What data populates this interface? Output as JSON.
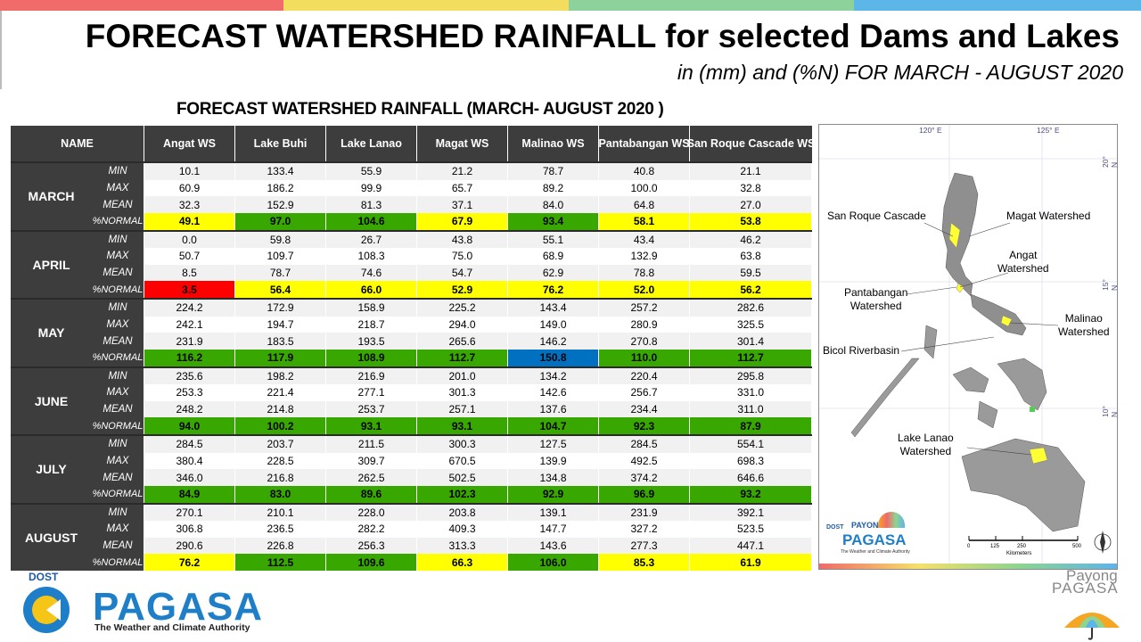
{
  "header": {
    "title": "FORECAST WATERSHED RAINFALL  for selected Dams and Lakes",
    "subtitle": "in (mm) and (%N) FOR MARCH - AUGUST 2020",
    "bar_colors": [
      "#f26b6b",
      "#f3dd5e",
      "#8cd29a",
      "#5db6e8"
    ]
  },
  "table": {
    "title": "FORECAST WATERSHED RAINFALL (MARCH- AUGUST 2020 )",
    "name_header": "NAME",
    "columns": [
      "Angat WS",
      "Lake Buhi",
      "Lake Lanao",
      "Magat WS",
      "Malinao WS",
      "Pantabangan WS",
      "San Roque Cascade WS"
    ],
    "stat_labels": [
      "MIN",
      "MAX",
      "MEAN",
      "%NORMAL"
    ],
    "months": [
      {
        "name": "MARCH",
        "rows": [
          [
            "10.1",
            "133.4",
            "55.9",
            "21.2",
            "78.7",
            "40.8",
            "21.1"
          ],
          [
            "60.9",
            "186.2",
            "99.9",
            "65.7",
            "89.2",
            "100.0",
            "32.8"
          ],
          [
            "32.3",
            "152.9",
            "81.3",
            "37.1",
            "84.0",
            "64.8",
            "27.0"
          ],
          [
            "49.1",
            "97.0",
            "104.6",
            "67.9",
            "93.4",
            "58.1",
            "53.8"
          ]
        ],
        "normal_colors": [
          "yellow",
          "green",
          "green",
          "yellow",
          "green",
          "yellow",
          "yellow"
        ]
      },
      {
        "name": "APRIL",
        "rows": [
          [
            "0.0",
            "59.8",
            "26.7",
            "43.8",
            "55.1",
            "43.4",
            "46.2"
          ],
          [
            "50.7",
            "109.7",
            "108.3",
            "75.0",
            "68.9",
            "132.9",
            "63.8"
          ],
          [
            "8.5",
            "78.7",
            "74.6",
            "54.7",
            "62.9",
            "78.8",
            "59.5"
          ],
          [
            "3.5",
            "56.4",
            "66.0",
            "52.9",
            "76.2",
            "52.0",
            "56.2"
          ]
        ],
        "normal_colors": [
          "red",
          "yellow",
          "yellow",
          "yellow",
          "yellow",
          "yellow",
          "yellow"
        ]
      },
      {
        "name": "MAY",
        "rows": [
          [
            "224.2",
            "172.9",
            "158.9",
            "225.2",
            "143.4",
            "257.2",
            "282.6"
          ],
          [
            "242.1",
            "194.7",
            "218.7",
            "294.0",
            "149.0",
            "280.9",
            "325.5"
          ],
          [
            "231.9",
            "183.5",
            "193.5",
            "265.6",
            "146.2",
            "270.8",
            "301.4"
          ],
          [
            "116.2",
            "117.9",
            "108.9",
            "112.7",
            "150.8",
            "110.0",
            "112.7"
          ]
        ],
        "normal_colors": [
          "green",
          "green",
          "green",
          "green",
          "blue",
          "green",
          "green"
        ]
      },
      {
        "name": "JUNE",
        "rows": [
          [
            "235.6",
            "198.2",
            "216.9",
            "201.0",
            "134.2",
            "220.4",
            "295.8"
          ],
          [
            "253.3",
            "221.4",
            "277.1",
            "301.3",
            "142.6",
            "256.7",
            "331.0"
          ],
          [
            "248.2",
            "214.8",
            "253.7",
            "257.1",
            "137.6",
            "234.4",
            "311.0"
          ],
          [
            "94.0",
            "100.2",
            "93.1",
            "93.1",
            "104.7",
            "92.3",
            "87.9"
          ]
        ],
        "normal_colors": [
          "green",
          "green",
          "green",
          "green",
          "green",
          "green",
          "green"
        ]
      },
      {
        "name": "JULY",
        "rows": [
          [
            "284.5",
            "203.7",
            "211.5",
            "300.3",
            "127.5",
            "284.5",
            "554.1"
          ],
          [
            "380.4",
            "228.5",
            "309.7",
            "670.5",
            "139.9",
            "492.5",
            "698.3"
          ],
          [
            "346.0",
            "216.8",
            "262.5",
            "502.5",
            "134.8",
            "374.2",
            "646.6"
          ],
          [
            "84.9",
            "83.0",
            "89.6",
            "102.3",
            "92.9",
            "96.9",
            "93.2"
          ]
        ],
        "normal_colors": [
          "green",
          "green",
          "green",
          "green",
          "green",
          "green",
          "green"
        ]
      },
      {
        "name": "AUGUST",
        "rows": [
          [
            "270.1",
            "210.1",
            "228.0",
            "203.8",
            "139.1",
            "231.9",
            "392.1"
          ],
          [
            "306.8",
            "236.5",
            "282.2",
            "409.3",
            "147.7",
            "327.2",
            "523.5"
          ],
          [
            "290.6",
            "226.8",
            "256.3",
            "313.3",
            "143.6",
            "277.3",
            "447.1"
          ],
          [
            "76.2",
            "112.5",
            "109.6",
            "66.3",
            "106.0",
            "85.3",
            "61.9"
          ]
        ],
        "normal_colors": [
          "yellow",
          "green",
          "green",
          "yellow",
          "green",
          "yellow",
          "yellow"
        ]
      }
    ],
    "color_map": {
      "yellow": "#ffff00",
      "green": "#38a800",
      "red": "#ff0000",
      "blue": "#0070c0"
    }
  },
  "map": {
    "coords_top": [
      "120° E",
      "125° E"
    ],
    "coords_right": [
      "20° N",
      "15° N",
      "10° N"
    ],
    "labels": {
      "san_roque": "San Roque Cascade",
      "magat": "Magat Watershed",
      "angat": "Angat\nWatershed",
      "pantabangan": "Pantabangan\nWatershed",
      "malinao": "Malinao\nWatershed",
      "bicol": "Bicol Riverbasin",
      "lanao": "Lake Lanao\nWatershed"
    },
    "scale_ticks": [
      "0",
      "125",
      "250",
      "500"
    ],
    "scale_unit": "Kilometers",
    "inset_logo": {
      "dost": "DOST",
      "payong": "PAYONG",
      "pagasa": "PAGASA",
      "tagline": "The Weather and Climate Authority"
    }
  },
  "footer": {
    "dost": "DOST",
    "pagasa": "PAGASA",
    "tagline": "The Weather and Climate Authority",
    "payong": "Payong",
    "payong_pagasa": "PAGASA"
  }
}
